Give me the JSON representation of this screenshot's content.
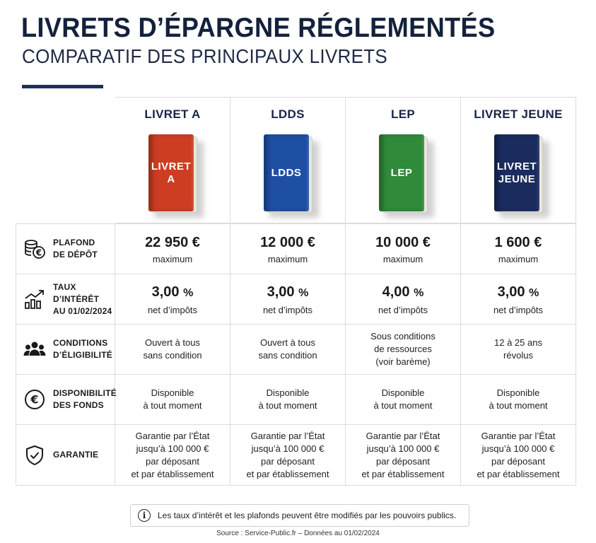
{
  "header": {
    "title": "LIVRETS D’ÉPARGNE RÉGLEMENTÉS",
    "subtitle": "COMPARATIF DES PRINCIPAUX LIVRETS"
  },
  "colors": {
    "navy": "#14213d",
    "livret_a": "#cc3d22",
    "ldds": "#1f4fa3",
    "lep": "#2f8a3a",
    "livret_jeune": "#1a2b5e"
  },
  "columns": [
    {
      "name": "LIVRET A",
      "book_line1": "LIVRET",
      "book_line2": "A",
      "color": "#cc3d22"
    },
    {
      "name": "LDDS",
      "book_line1": "LDDS",
      "book_line2": "",
      "color": "#1f4fa3"
    },
    {
      "name": "LEP",
      "book_line1": "LEP",
      "book_line2": "",
      "color": "#2f8a3a"
    },
    {
      "name": "LIVRET JEUNE",
      "book_line1": "LIVRET",
      "book_line2": "JEUNE",
      "color": "#1a2b5e"
    }
  ],
  "rows": {
    "plafond": {
      "icon": "coins-euro-icon",
      "label_line1": "PLAFOND",
      "label_line2": "DE DÉPÔT",
      "values": [
        {
          "amount": "22 950",
          "unit": "€",
          "note": "maximum"
        },
        {
          "amount": "12 000",
          "unit": "€",
          "note": "maximum"
        },
        {
          "amount": "10 000",
          "unit": "€",
          "note": "maximum"
        },
        {
          "amount": "1 600",
          "unit": "€",
          "note": "maximum"
        }
      ]
    },
    "taux": {
      "icon": "growth-chart-icon",
      "label_line1": "TAUX D’INTÉRÊT",
      "label_line2": "AU 01/02/2024",
      "values": [
        {
          "amount": "3,00",
          "unit": "%",
          "note": "net d’impôts"
        },
        {
          "amount": "3,00",
          "unit": "%",
          "note": "net d’impôts"
        },
        {
          "amount": "4,00",
          "unit": "%",
          "note": "net d’impôts"
        },
        {
          "amount": "3,00",
          "unit": "%",
          "note": "net d’impôts"
        }
      ]
    },
    "conditions": {
      "icon": "people-group-icon",
      "label_line1": "CONDITIONS",
      "label_line2": "D’ÉLIGIBILITÉ",
      "values": [
        [
          "Ouvert à tous",
          "sans condition"
        ],
        [
          "Ouvert à tous",
          "sans condition"
        ],
        [
          "Sous conditions",
          "de ressources",
          "(voir barème)"
        ],
        [
          "12 à 25 ans",
          "révolus"
        ]
      ]
    },
    "disponibilite": {
      "icon": "euro-circle-icon",
      "label_line1": "DISPONIBILITÉ",
      "label_line2": "DES FONDS",
      "values": [
        [
          "Disponible",
          "à tout moment"
        ],
        [
          "Disponible",
          "à tout moment"
        ],
        [
          "Disponible",
          "à tout moment"
        ],
        [
          "Disponible",
          "à tout moment"
        ]
      ]
    },
    "garantie": {
      "icon": "shield-check-icon",
      "label_line1": "GARANTIE",
      "values": [
        [
          "Garantie par l’État",
          "jusqu’à 100 000 €",
          "par déposant",
          "et par établissement"
        ],
        [
          "Garantie par l’État",
          "jusqu’à 100 000 €",
          "par déposant",
          "et par établissement"
        ],
        [
          "Garantie par l’État",
          "jusqu’à 100 000 €",
          "par déposant",
          "et par établissement"
        ],
        [
          "Garantie par l’État",
          "jusqu’à 100 000 €",
          "par déposant",
          "et par établissement"
        ]
      ]
    }
  },
  "footer": {
    "note_icon": "info-icon",
    "note_icon_glyph": "i",
    "note": "Les taux d’intérêt et les plafonds peuvent être modifiés par les pouvoirs publics.",
    "source": "Source : Service-Public.fr – Données au 01/02/2024"
  }
}
